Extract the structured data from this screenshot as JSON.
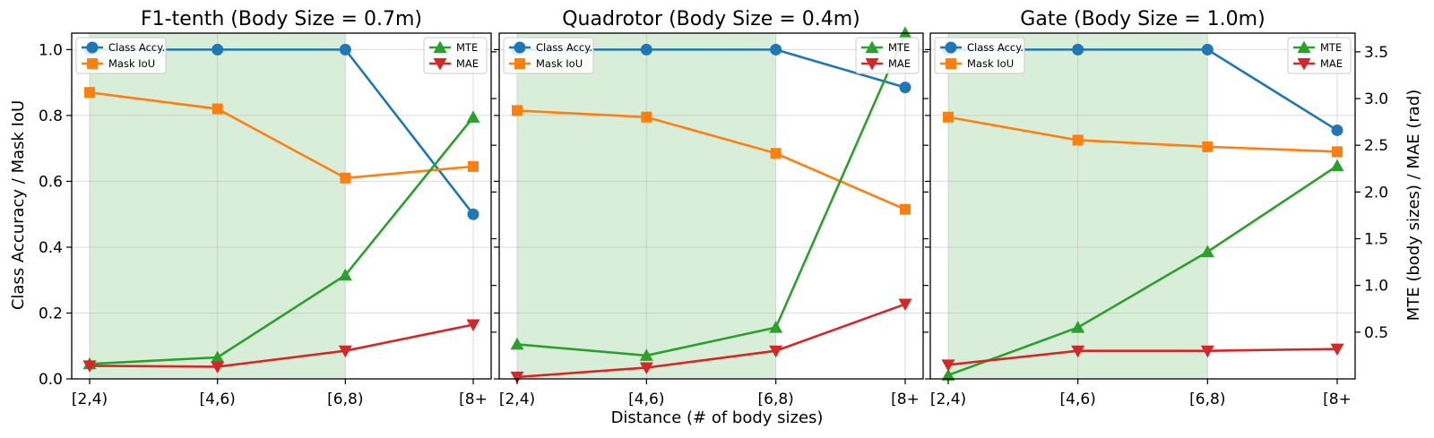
{
  "figure": {
    "xlabel": "Distance (# of body sizes)",
    "ylabel_left": "Class Accuracy / Mask IoU",
    "ylabel_right": "MTE (body sizes) / MAE (rad)"
  },
  "chart_data": [
    {
      "type": "line",
      "title": "F1-tenth (Body Size = 0.7m)",
      "categories": [
        "[2,4)",
        "[4,6)",
        "[6,8)",
        "[8+"
      ],
      "shaded_categories": [
        "[2,4)",
        "[6,8)"
      ],
      "ylim_left": [
        0,
        1.05
      ],
      "yticks_left": [
        "0.0",
        "0.2",
        "0.4",
        "0.6",
        "0.8",
        "1.0"
      ],
      "ylim_right": [
        0,
        3.7
      ],
      "yticks_right": [
        "0.5",
        "1.0",
        "1.5",
        "2.0",
        "2.5",
        "3.0",
        "3.5"
      ],
      "grid": true,
      "legend_left_placement": "top-left",
      "legend_right_placement": "top-right",
      "series": [
        {
          "name": "Class Accy.",
          "axis": "left",
          "marker": "circle",
          "color": "#1f77b4",
          "values": [
            1.0,
            1.0,
            1.0,
            0.5
          ]
        },
        {
          "name": "Mask IoU",
          "axis": "left",
          "marker": "square",
          "color": "#ff7f0e",
          "values": [
            0.87,
            0.82,
            0.61,
            0.645
          ]
        },
        {
          "name": "MTE",
          "axis": "right",
          "marker": "triangle-up",
          "color": "#2ca02c",
          "values": [
            0.16,
            0.23,
            1.11,
            2.8
          ]
        },
        {
          "name": "MAE",
          "axis": "right",
          "marker": "triangle-down",
          "color": "#d62728",
          "values": [
            0.14,
            0.13,
            0.3,
            0.58
          ]
        }
      ]
    },
    {
      "type": "line",
      "title": "Quadrotor (Body Size = 0.4m)",
      "categories": [
        "[2,4)",
        "[4,6)",
        "[6,8)",
        "[8+"
      ],
      "shaded_categories": [
        "[2,4)",
        "[6,8)"
      ],
      "ylim_left": [
        0,
        1.05
      ],
      "yticks_left": [
        "0.0",
        "0.2",
        "0.4",
        "0.6",
        "0.8",
        "1.0"
      ],
      "ylim_right": [
        0,
        3.7
      ],
      "yticks_right": [
        "0.5",
        "1.0",
        "1.5",
        "2.0",
        "2.5",
        "3.0",
        "3.5"
      ],
      "grid": true,
      "legend_left_placement": "top-left",
      "legend_right_placement": "top-right",
      "series": [
        {
          "name": "Class Accy.",
          "axis": "left",
          "marker": "circle",
          "color": "#1f77b4",
          "values": [
            1.0,
            1.0,
            1.0,
            0.885
          ]
        },
        {
          "name": "Mask IoU",
          "axis": "left",
          "marker": "square",
          "color": "#ff7f0e",
          "values": [
            0.815,
            0.795,
            0.685,
            0.515
          ]
        },
        {
          "name": "MTE",
          "axis": "right",
          "marker": "triangle-up",
          "color": "#2ca02c",
          "values": [
            0.37,
            0.25,
            0.55,
            3.7
          ]
        },
        {
          "name": "MAE",
          "axis": "right",
          "marker": "triangle-down",
          "color": "#d62728",
          "values": [
            0.02,
            0.12,
            0.3,
            0.8
          ]
        }
      ]
    },
    {
      "type": "line",
      "title": "Gate (Body Size = 1.0m)",
      "categories": [
        "[2,4)",
        "[4,6)",
        "[6,8)",
        "[8+"
      ],
      "shaded_categories": [
        "[2,4)",
        "[6,8)"
      ],
      "ylim_left": [
        0,
        1.05
      ],
      "yticks_left": [
        "0.0",
        "0.2",
        "0.4",
        "0.6",
        "0.8",
        "1.0"
      ],
      "ylim_right": [
        0,
        3.7
      ],
      "yticks_right": [
        "0.5",
        "1.0",
        "1.5",
        "2.0",
        "2.5",
        "3.0",
        "3.5"
      ],
      "grid": true,
      "legend_left_placement": "top-left",
      "legend_right_placement": "top-right",
      "series": [
        {
          "name": "Class Accy.",
          "axis": "left",
          "marker": "circle",
          "color": "#1f77b4",
          "values": [
            1.0,
            1.0,
            1.0,
            0.755
          ]
        },
        {
          "name": "Mask IoU",
          "axis": "left",
          "marker": "square",
          "color": "#ff7f0e",
          "values": [
            0.795,
            0.725,
            0.705,
            0.69
          ]
        },
        {
          "name": "MTE",
          "axis": "right",
          "marker": "triangle-up",
          "color": "#2ca02c",
          "values": [
            0.04,
            0.55,
            1.36,
            2.28
          ]
        },
        {
          "name": "MAE",
          "axis": "right",
          "marker": "triangle-down",
          "color": "#d62728",
          "values": [
            0.15,
            0.3,
            0.3,
            0.32
          ]
        }
      ]
    }
  ]
}
